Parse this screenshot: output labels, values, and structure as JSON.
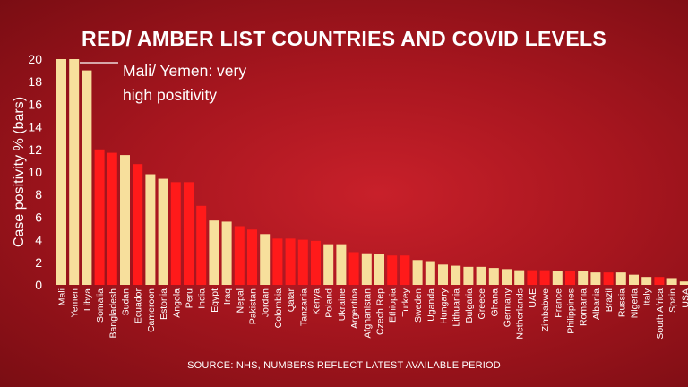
{
  "title": "RED/ AMBER LIST COUNTRIES AND COVID LEVELS",
  "source": "SOURCE: NHS, NUMBERS REFLECT LATEST AVAILABLE PERIOD",
  "annotation": {
    "line1": "Mali/ Yemen: very",
    "line2": "high positivity"
  },
  "colors": {
    "red_list": "#ff1a1a",
    "amber_list": "#f7df9c",
    "text": "#ffffff"
  },
  "chart_data": {
    "type": "bar",
    "title": "RED/ AMBER LIST COUNTRIES AND COVID LEVELS",
    "xlabel": "",
    "ylabel": "Case positivity %  (bars)",
    "ylim": [
      0,
      20
    ],
    "yticks": [
      0,
      2,
      4,
      6,
      8,
      10,
      12,
      14,
      16,
      18,
      20
    ],
    "grid": false,
    "categories": [
      "Mali",
      "Yemen",
      "Libya",
      "Somalia",
      "Bangladesh",
      "Sudan",
      "Ecuador",
      "Cameroon",
      "Estonia",
      "Angola",
      "Peru",
      "India",
      "Egypt",
      "Iraq",
      "Nepal",
      "Pakistan",
      "Jordan",
      "Colombia",
      "Qatar",
      "Tanzania",
      "Kenya",
      "Poland",
      "Ukraine",
      "Argentina",
      "Afghanistan",
      "Czech Rep",
      "Ethiopia",
      "Turkey",
      "Sweden",
      "Uganda",
      "Hungary",
      "Lithuania",
      "Bulgaria",
      "Greece",
      "Ghana",
      "Germany",
      "Netherlands",
      "UAE",
      "Zimbabwe",
      "France",
      "Philippines",
      "Romania",
      "Albania",
      "Brazil",
      "Russia",
      "Nigeria",
      "Italy",
      "South Africa",
      "Spain",
      "USA"
    ],
    "values": [
      20,
      20,
      19,
      12,
      11.7,
      11.5,
      10.7,
      9.8,
      9.4,
      9.1,
      9.1,
      7,
      5.7,
      5.6,
      5.2,
      4.9,
      4.5,
      4.1,
      4.1,
      4,
      3.9,
      3.6,
      3.6,
      2.9,
      2.8,
      2.7,
      2.6,
      2.6,
      2.2,
      2.1,
      1.8,
      1.7,
      1.6,
      1.6,
      1.5,
      1.4,
      1.3,
      1.3,
      1.3,
      1.2,
      1.2,
      1.2,
      1.1,
      1.1,
      1.1,
      0.9,
      0.7,
      0.7,
      0.6,
      0.3
    ],
    "list": [
      "amber",
      "amber",
      "amber",
      "red",
      "red",
      "amber",
      "red",
      "amber",
      "amber",
      "red",
      "red",
      "red",
      "amber",
      "amber",
      "red",
      "red",
      "amber",
      "red",
      "red",
      "red",
      "red",
      "amber",
      "amber",
      "red",
      "amber",
      "amber",
      "red",
      "red",
      "amber",
      "amber",
      "amber",
      "amber",
      "amber",
      "amber",
      "amber",
      "amber",
      "amber",
      "red",
      "red",
      "amber",
      "red",
      "amber",
      "amber",
      "red",
      "amber",
      "amber",
      "amber",
      "red",
      "amber",
      "amber"
    ]
  }
}
